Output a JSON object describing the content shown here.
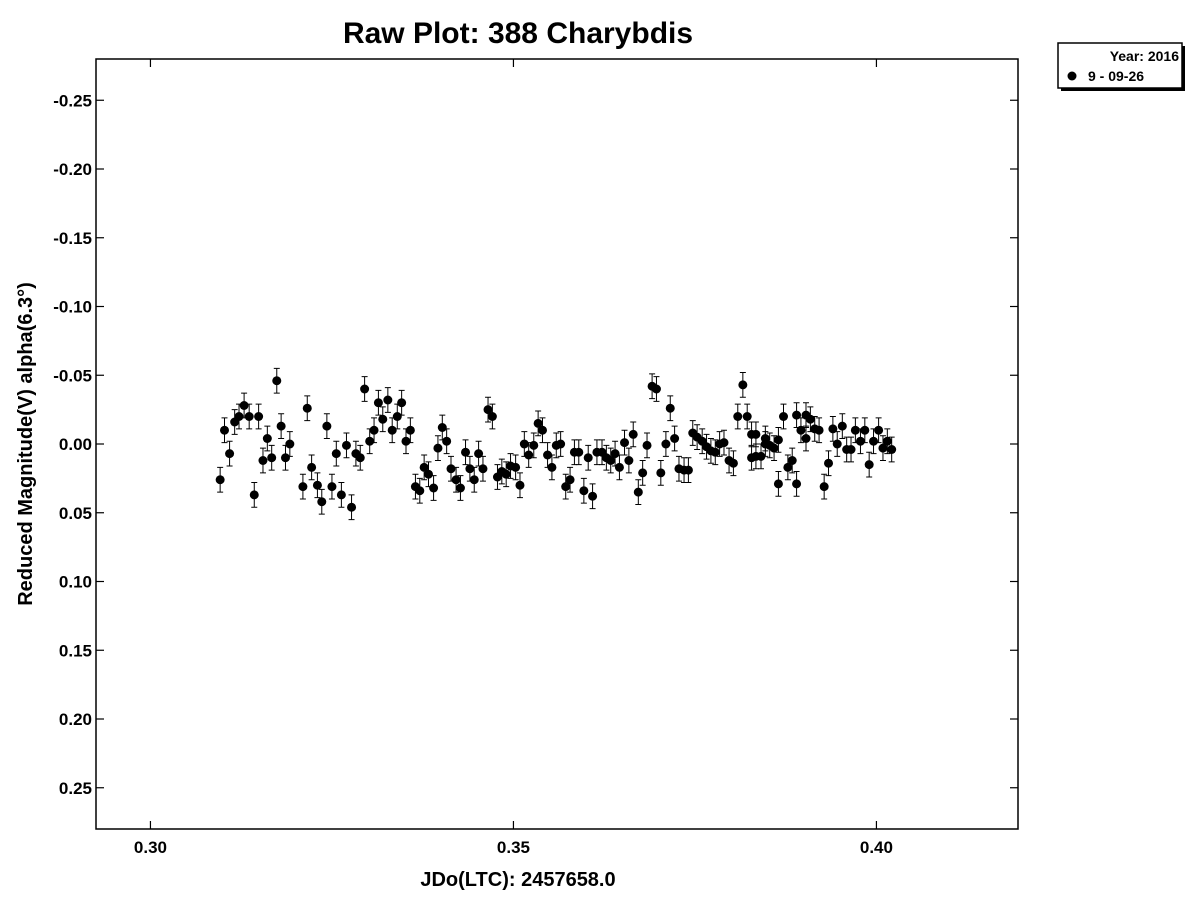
{
  "chart_data": {
    "type": "scatter",
    "title": "Raw Plot: 388 Charybdis",
    "xlabel": "JDo(LTC): 2457658.0",
    "ylabel": "Reduced Magnitude(V) alpha(6.3°)",
    "xlim": [
      0.2925,
      0.4195
    ],
    "ylim": [
      0.28,
      -0.28
    ],
    "y_inverted": true,
    "grid": false,
    "x_ticks": [
      0.3,
      0.35,
      0.4
    ],
    "x_tick_labels": [
      "0.30",
      "0.35",
      "0.40"
    ],
    "y_ticks": [
      -0.25,
      -0.2,
      -0.15,
      -0.1,
      -0.05,
      0.0,
      0.05,
      0.1,
      0.15,
      0.2,
      0.25
    ],
    "y_tick_labels": [
      "-0.25",
      "-0.20",
      "-0.15",
      "-0.10",
      "-0.05",
      "0.00",
      "0.05",
      "0.10",
      "0.15",
      "0.20",
      "0.25"
    ],
    "error_bar": 0.009,
    "legend": {
      "position": "top-right",
      "header": "Year: 2016",
      "entries": [
        {
          "label": "9 - 09-26",
          "marker": "filled-circle",
          "color": "#000000"
        }
      ]
    },
    "series": [
      {
        "name": "9 - 09-26",
        "color": "#000000",
        "points": [
          [
            0.3096,
            0.026
          ],
          [
            0.3102,
            -0.01
          ],
          [
            0.3109,
            0.007
          ],
          [
            0.3116,
            -0.016
          ],
          [
            0.3122,
            -0.02
          ],
          [
            0.3129,
            -0.028
          ],
          [
            0.3136,
            -0.02
          ],
          [
            0.3143,
            0.037
          ],
          [
            0.3149,
            -0.02
          ],
          [
            0.3155,
            0.012
          ],
          [
            0.3161,
            -0.004
          ],
          [
            0.3167,
            0.01
          ],
          [
            0.3174,
            -0.046
          ],
          [
            0.318,
            -0.013
          ],
          [
            0.3186,
            0.01
          ],
          [
            0.3192,
            0.0
          ],
          [
            0.321,
            0.031
          ],
          [
            0.3216,
            -0.026
          ],
          [
            0.3222,
            0.017
          ],
          [
            0.323,
            0.03
          ],
          [
            0.3236,
            0.042
          ],
          [
            0.3243,
            -0.013
          ],
          [
            0.325,
            0.031
          ],
          [
            0.3256,
            0.007
          ],
          [
            0.3263,
            0.037
          ],
          [
            0.327,
            0.001
          ],
          [
            0.3277,
            0.046
          ],
          [
            0.3283,
            0.007
          ],
          [
            0.3289,
            0.01
          ],
          [
            0.3295,
            -0.04
          ],
          [
            0.3302,
            -0.002
          ],
          [
            0.3308,
            -0.01
          ],
          [
            0.3314,
            -0.03
          ],
          [
            0.332,
            -0.018
          ],
          [
            0.3327,
            -0.032
          ],
          [
            0.3333,
            -0.01
          ],
          [
            0.334,
            -0.02
          ],
          [
            0.3346,
            -0.03
          ],
          [
            0.3352,
            -0.002
          ],
          [
            0.3358,
            -0.01
          ],
          [
            0.3365,
            0.031
          ],
          [
            0.3371,
            0.034
          ],
          [
            0.3377,
            0.017
          ],
          [
            0.3383,
            0.022
          ],
          [
            0.339,
            0.032
          ],
          [
            0.3396,
            0.003
          ],
          [
            0.3402,
            -0.012
          ],
          [
            0.3408,
            -0.002
          ],
          [
            0.3414,
            0.018
          ],
          [
            0.3421,
            0.026
          ],
          [
            0.3427,
            0.032
          ],
          [
            0.3434,
            0.006
          ],
          [
            0.344,
            0.018
          ],
          [
            0.3446,
            0.026
          ],
          [
            0.3452,
            0.007
          ],
          [
            0.3458,
            0.018
          ],
          [
            0.3465,
            -0.025
          ],
          [
            0.3471,
            -0.02
          ],
          [
            0.3478,
            0.024
          ],
          [
            0.3484,
            0.02
          ],
          [
            0.349,
            0.022
          ],
          [
            0.3496,
            0.016
          ],
          [
            0.3503,
            0.017
          ],
          [
            0.3509,
            0.03
          ],
          [
            0.3515,
            0.0
          ],
          [
            0.3521,
            0.008
          ],
          [
            0.3528,
            0.001
          ],
          [
            0.3534,
            -0.015
          ],
          [
            0.354,
            -0.01
          ],
          [
            0.3547,
            0.008
          ],
          [
            0.3553,
            0.017
          ],
          [
            0.3559,
            0.001
          ],
          [
            0.3565,
            0.0
          ],
          [
            0.3572,
            0.031
          ],
          [
            0.3578,
            0.026
          ],
          [
            0.3584,
            0.006
          ],
          [
            0.359,
            0.006
          ],
          [
            0.3597,
            0.034
          ],
          [
            0.3603,
            0.01
          ],
          [
            0.3609,
            0.038
          ],
          [
            0.3615,
            0.006
          ],
          [
            0.3622,
            0.006
          ],
          [
            0.3628,
            0.01
          ],
          [
            0.3634,
            0.012
          ],
          [
            0.364,
            0.007
          ],
          [
            0.3646,
            0.017
          ],
          [
            0.3653,
            -0.001
          ],
          [
            0.3659,
            0.012
          ],
          [
            0.3665,
            -0.007
          ],
          [
            0.3672,
            0.035
          ],
          [
            0.3678,
            0.021
          ],
          [
            0.3684,
            0.001
          ],
          [
            0.3691,
            -0.042
          ],
          [
            0.3697,
            -0.04
          ],
          [
            0.3703,
            0.021
          ],
          [
            0.371,
            0.0
          ],
          [
            0.3716,
            -0.026
          ],
          [
            0.3722,
            -0.004
          ],
          [
            0.3728,
            0.018
          ],
          [
            0.3735,
            0.019
          ],
          [
            0.3741,
            0.019
          ],
          [
            0.3747,
            -0.008
          ],
          [
            0.3753,
            -0.005
          ],
          [
            0.376,
            -0.002
          ],
          [
            0.3766,
            0.002
          ],
          [
            0.3772,
            0.005
          ],
          [
            0.3778,
            0.006
          ],
          [
            0.3784,
            0.0
          ],
          [
            0.379,
            -0.001
          ],
          [
            0.3797,
            0.012
          ],
          [
            0.3803,
            0.014
          ],
          [
            0.3809,
            -0.02
          ],
          [
            0.3816,
            -0.043
          ],
          [
            0.3822,
            -0.02
          ],
          [
            0.3828,
            0.01
          ],
          [
            0.3834,
            0.009
          ],
          [
            0.3841,
            0.009
          ],
          [
            0.3847,
            0.0
          ],
          [
            0.3853,
            0.001
          ],
          [
            0.3859,
            0.003
          ],
          [
            0.3865,
            0.029
          ],
          [
            0.3872,
            -0.02
          ],
          [
            0.3878,
            0.017
          ],
          [
            0.3884,
            0.012
          ],
          [
            0.389,
            0.029
          ],
          [
            0.3896,
            -0.01
          ],
          [
            0.3903,
            -0.004
          ],
          [
            0.3909,
            -0.018
          ],
          [
            0.3915,
            -0.011
          ],
          [
            0.3921,
            -0.01
          ],
          [
            0.3928,
            0.031
          ],
          [
            0.3934,
            0.014
          ],
          [
            0.394,
            -0.011
          ],
          [
            0.3946,
            0.0
          ],
          [
            0.3953,
            -0.013
          ],
          [
            0.3959,
            0.004
          ],
          [
            0.3965,
            0.004
          ],
          [
            0.3971,
            -0.01
          ],
          [
            0.3978,
            -0.002
          ],
          [
            0.3984,
            -0.01
          ],
          [
            0.399,
            0.015
          ],
          [
            0.3996,
            -0.002
          ],
          [
            0.4003,
            -0.01
          ],
          [
            0.4009,
            0.003
          ],
          [
            0.4015,
            -0.002
          ],
          [
            0.4021,
            0.004
          ],
          [
            0.3834,
            -0.007
          ],
          [
            0.3847,
            -0.004
          ],
          [
            0.3865,
            -0.003
          ],
          [
            0.389,
            -0.021
          ],
          [
            0.3903,
            -0.021
          ],
          [
            0.3828,
            -0.007
          ]
        ]
      }
    ]
  }
}
